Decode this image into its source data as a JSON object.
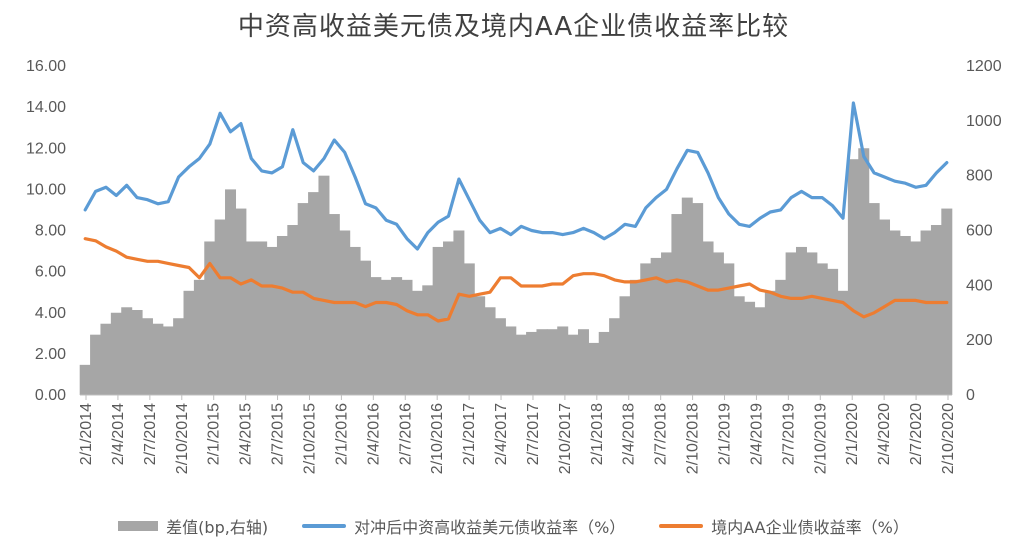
{
  "title": "中资高收益美元债及境内AA企业债收益率比较",
  "legend": {
    "bar": "差值(bp,右轴)",
    "line1": "对冲后中资高收益美元债收益率（%）",
    "line2": "境内AA企业债收益率（%）"
  },
  "colors": {
    "bar": "#a6a6a6",
    "line1": "#5b9bd5",
    "line2": "#ed7d31"
  },
  "chart_data": {
    "type": "line",
    "title": "中资高收益美元债及境内AA企业债收益率比较",
    "x_tick_labels": [
      "2/1/2014",
      "2/4/2014",
      "2/7/2014",
      "2/10/2014",
      "2/1/2015",
      "2/4/2015",
      "2/7/2015",
      "2/10/2015",
      "2/1/2016",
      "2/4/2016",
      "2/7/2016",
      "2/10/2016",
      "2/1/2017",
      "2/4/2017",
      "2/7/2017",
      "2/10/2017",
      "2/1/2018",
      "2/4/2018",
      "2/7/2018",
      "2/10/2018",
      "2/1/2019",
      "2/4/2019",
      "2/7/2019",
      "2/10/2019",
      "2/1/2020",
      "2/4/2020",
      "2/7/2020",
      "2/10/2020"
    ],
    "y_left": {
      "min": 0,
      "max": 16,
      "ticks": [
        "0.00",
        "2.00",
        "4.00",
        "6.00",
        "8.00",
        "10.00",
        "12.00",
        "14.00",
        "16.00"
      ]
    },
    "y_right": {
      "min": 0,
      "max": 1200,
      "ticks": [
        "0",
        "200",
        "400",
        "600",
        "800",
        "1000",
        "1200"
      ]
    },
    "x": [
      "2014-01",
      "2014-02",
      "2014-03",
      "2014-04",
      "2014-05",
      "2014-06",
      "2014-07",
      "2014-08",
      "2014-09",
      "2014-10",
      "2014-11",
      "2014-12",
      "2015-01",
      "2015-02",
      "2015-03",
      "2015-04",
      "2015-05",
      "2015-06",
      "2015-07",
      "2015-08",
      "2015-09",
      "2015-10",
      "2015-11",
      "2015-12",
      "2016-01",
      "2016-02",
      "2016-03",
      "2016-04",
      "2016-05",
      "2016-06",
      "2016-07",
      "2016-08",
      "2016-09",
      "2016-10",
      "2016-11",
      "2016-12",
      "2017-01",
      "2017-02",
      "2017-03",
      "2017-04",
      "2017-05",
      "2017-06",
      "2017-07",
      "2017-08",
      "2017-09",
      "2017-10",
      "2017-11",
      "2017-12",
      "2018-01",
      "2018-02",
      "2018-03",
      "2018-04",
      "2018-05",
      "2018-06",
      "2018-07",
      "2018-08",
      "2018-09",
      "2018-10",
      "2018-11",
      "2018-12",
      "2019-01",
      "2019-02",
      "2019-03",
      "2019-04",
      "2019-05",
      "2019-06",
      "2019-07",
      "2019-08",
      "2019-09",
      "2019-10",
      "2019-11",
      "2019-12",
      "2020-01",
      "2020-02",
      "2020-03",
      "2020-04",
      "2020-05",
      "2020-06",
      "2020-07",
      "2020-08",
      "2020-09",
      "2020-10",
      "2020-11",
      "2020-12"
    ],
    "series": [
      {
        "name": "差值(bp,右轴)",
        "axis": "right",
        "kind": "bar",
        "values": [
          110,
          220,
          260,
          300,
          320,
          310,
          280,
          260,
          250,
          280,
          380,
          420,
          560,
          640,
          750,
          680,
          560,
          560,
          540,
          580,
          620,
          700,
          740,
          800,
          660,
          600,
          540,
          490,
          430,
          420,
          430,
          420,
          380,
          400,
          540,
          560,
          600,
          480,
          360,
          320,
          280,
          250,
          220,
          230,
          240,
          240,
          250,
          220,
          240,
          190,
          230,
          280,
          360,
          420,
          480,
          500,
          520,
          660,
          720,
          700,
          560,
          520,
          480,
          360,
          340,
          320,
          380,
          420,
          520,
          540,
          520,
          480,
          460,
          380,
          860,
          900,
          700,
          640,
          600,
          580,
          560,
          600,
          620,
          680
        ]
      },
      {
        "name": "对冲后中资高收益美元债收益率（%）",
        "axis": "left",
        "kind": "line",
        "values": [
          9.0,
          9.9,
          10.1,
          9.7,
          10.2,
          9.6,
          9.5,
          9.3,
          9.4,
          10.6,
          11.1,
          11.5,
          12.2,
          13.7,
          12.8,
          13.2,
          11.5,
          10.9,
          10.8,
          11.1,
          12.9,
          11.3,
          10.9,
          11.5,
          12.4,
          11.8,
          10.6,
          9.3,
          9.1,
          8.5,
          8.3,
          7.6,
          7.1,
          7.9,
          8.4,
          8.7,
          10.5,
          9.5,
          8.5,
          7.9,
          8.1,
          7.8,
          8.2,
          8.0,
          7.9,
          7.9,
          7.8,
          7.9,
          8.1,
          7.9,
          7.6,
          7.9,
          8.3,
          8.2,
          9.1,
          9.6,
          10.0,
          11.0,
          11.9,
          11.8,
          10.8,
          9.6,
          8.8,
          8.3,
          8.2,
          8.6,
          8.9,
          9.0,
          9.6,
          9.9,
          9.6,
          9.6,
          9.2,
          8.6,
          14.2,
          11.6,
          10.8,
          10.6,
          10.4,
          10.3,
          10.1,
          10.2,
          10.8,
          11.3
        ]
      },
      {
        "name": "境内AA企业债收益率（%）",
        "axis": "left",
        "kind": "line",
        "values": [
          7.6,
          7.5,
          7.2,
          7.0,
          6.7,
          6.6,
          6.5,
          6.5,
          6.4,
          6.3,
          6.2,
          5.7,
          6.4,
          5.7,
          5.7,
          5.4,
          5.6,
          5.3,
          5.3,
          5.2,
          5.0,
          5.0,
          4.7,
          4.6,
          4.5,
          4.5,
          4.5,
          4.3,
          4.5,
          4.5,
          4.4,
          4.1,
          3.9,
          3.9,
          3.6,
          3.7,
          4.9,
          4.8,
          4.9,
          5.0,
          5.7,
          5.7,
          5.3,
          5.3,
          5.3,
          5.4,
          5.4,
          5.8,
          5.9,
          5.9,
          5.8,
          5.6,
          5.5,
          5.5,
          5.6,
          5.7,
          5.5,
          5.6,
          5.5,
          5.3,
          5.1,
          5.1,
          5.2,
          5.3,
          5.4,
          5.1,
          5.0,
          4.8,
          4.7,
          4.7,
          4.8,
          4.7,
          4.6,
          4.5,
          4.1,
          3.8,
          4.0,
          4.3,
          4.6,
          4.6,
          4.6,
          4.5,
          4.5,
          4.5
        ]
      }
    ],
    "grid": false,
    "legend_position": "bottom"
  }
}
